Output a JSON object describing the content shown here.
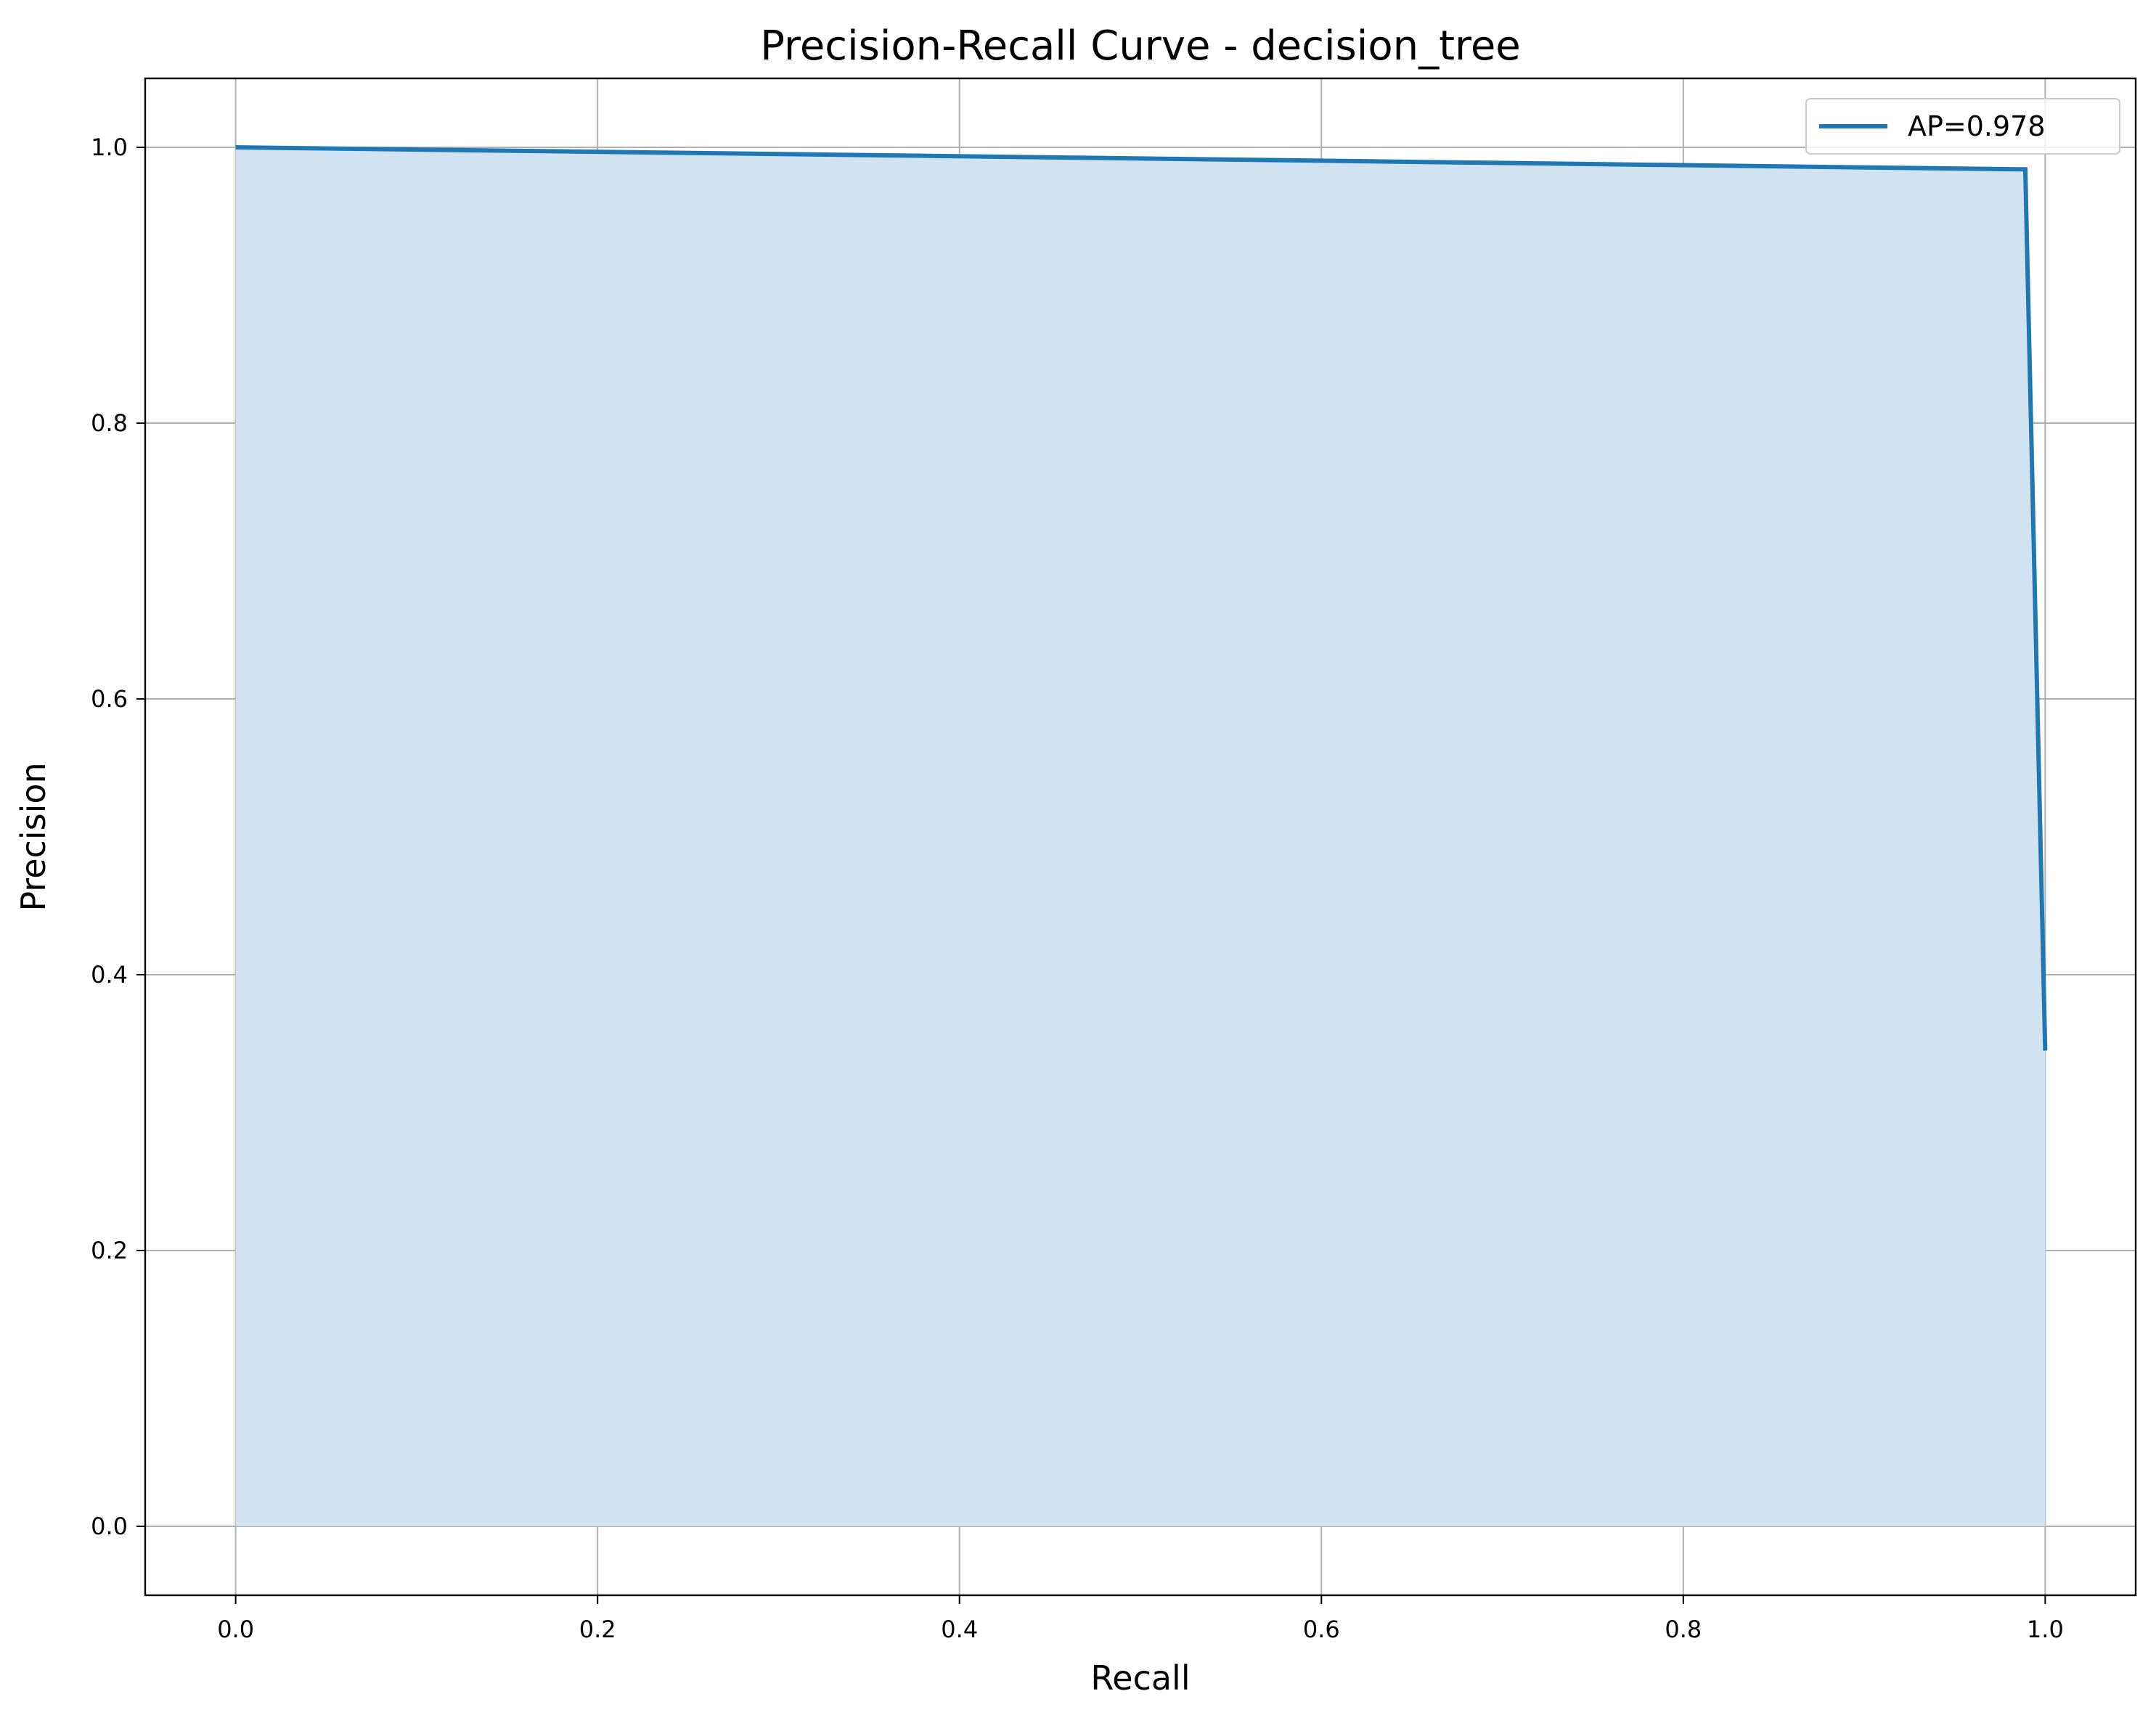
{
  "chart_data": {
    "type": "line",
    "title": "Precision-Recall Curve - decision_tree",
    "xlabel": "Recall",
    "ylabel": "Precision",
    "xlim": [
      -0.05,
      1.05
    ],
    "ylim": [
      -0.05,
      1.05
    ],
    "xticks": [
      "0.0",
      "0.2",
      "0.4",
      "0.6",
      "0.8",
      "1.0"
    ],
    "yticks": [
      "0.0",
      "0.2",
      "0.4",
      "0.6",
      "0.8",
      "1.0"
    ],
    "grid": true,
    "legend_position": "top-right",
    "fill_under_curve": true,
    "series": [
      {
        "name": "AP=0.978",
        "color": "#1f77b4",
        "fill_color": "#d1e3f0",
        "x": [
          0.0,
          0.989,
          1.0
        ],
        "y": [
          1.0,
          0.984,
          0.345
        ]
      }
    ]
  }
}
